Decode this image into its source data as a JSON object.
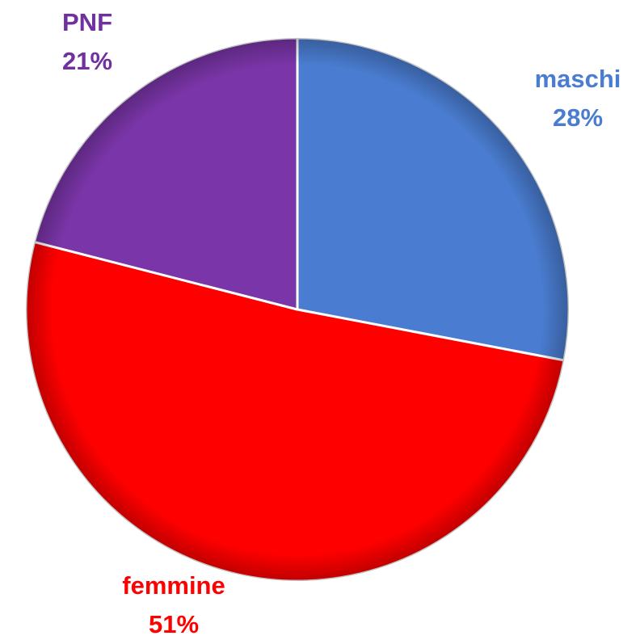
{
  "chart_data": {
    "type": "pie",
    "categories": [
      "maschi",
      "femmine",
      "PNF"
    ],
    "values": [
      28,
      51,
      21
    ],
    "value_labels": [
      "28%",
      "51%",
      "21%"
    ],
    "colors": [
      "#4a7dd1",
      "#ff0000",
      "#7a35a8"
    ],
    "label_colors": [
      "#4a7dd1",
      "#ff0000",
      "#7030a0"
    ]
  }
}
